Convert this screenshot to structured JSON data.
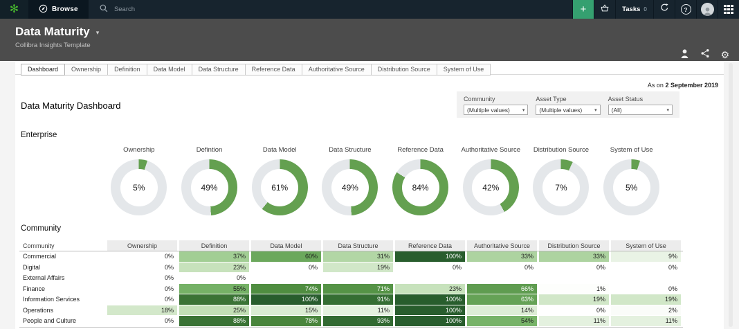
{
  "topnav": {
    "browse_label": "Browse",
    "search_placeholder": "Search",
    "create_label": "+",
    "tasks_label": "Tasks",
    "tasks_count": "0"
  },
  "header": {
    "title": "Data Maturity",
    "subtitle": "Collibra Insights Template"
  },
  "tabs": {
    "active": "Dashboard",
    "items": [
      "Dashboard",
      "Ownership",
      "Definition",
      "Data Model",
      "Data Structure",
      "Reference Data",
      "Authoritative Source",
      "Distribution Source",
      "System of Use"
    ]
  },
  "as_on": {
    "prefix": "As on",
    "date": "2 September 2019"
  },
  "filters": [
    {
      "label": "Community",
      "value": "(Multiple values)"
    },
    {
      "label": "Asset Type",
      "value": "(Multiple values)"
    },
    {
      "label": "Asset Status",
      "value": "(All)"
    }
  ],
  "page_title": "Data Maturity Dashboard",
  "sections": {
    "enterprise": "Enterprise",
    "community": "Community"
  },
  "colors": {
    "navbar_bg": "#17242e",
    "navbar_block": "#0b1720",
    "accent_green": "#35a070",
    "logo_green": "#46b42e",
    "header_bg": "#4c4c4c",
    "donut_green": "#64a050",
    "donut_track": "#e4e7ea",
    "heat_scale": [
      "#ffffff",
      "#c2dfb6",
      "#7fbb70",
      "#4d8b3e",
      "#285d2d"
    ],
    "heat_white_text_min": 63
  },
  "chart_data": [
    {
      "type": "pie",
      "subtype": "donut-kpi-row",
      "section": "Enterprise",
      "unit": "%",
      "legend_position": "none",
      "series": [
        {
          "name": "Ownership",
          "value": 5
        },
        {
          "name": "Defintion",
          "value": 49
        },
        {
          "name": "Data Model",
          "value": 61
        },
        {
          "name": "Data Structure",
          "value": 49
        },
        {
          "name": "Reference Data",
          "value": 84
        },
        {
          "name": "Authoritative Source",
          "value": 42
        },
        {
          "name": "Distribution Source",
          "value": 7
        },
        {
          "name": "System of Use",
          "value": 5
        }
      ]
    },
    {
      "type": "heatmap",
      "section": "Community",
      "unit": "%",
      "scale": {
        "min": 0,
        "max": 100
      },
      "columns": [
        "Community",
        "Ownership",
        "Definition",
        "Data Model",
        "Data Structure",
        "Reference Data",
        "Authoritative Source",
        "Distribution Source",
        "System of Use"
      ],
      "rows": [
        {
          "name": "Commercial",
          "values": [
            0,
            37,
            60,
            31,
            100,
            33,
            33,
            9
          ]
        },
        {
          "name": "Digital",
          "values": [
            0,
            23,
            0,
            19,
            0,
            0,
            0,
            0
          ]
        },
        {
          "name": "External Affairs",
          "values": [
            0,
            0,
            null,
            null,
            null,
            null,
            null,
            null
          ]
        },
        {
          "name": "Finance",
          "values": [
            0,
            55,
            74,
            71,
            23,
            66,
            1,
            0
          ]
        },
        {
          "name": "Information Services",
          "values": [
            0,
            88,
            100,
            91,
            100,
            63,
            19,
            19
          ]
        },
        {
          "name": "Operations",
          "values": [
            18,
            25,
            15,
            11,
            100,
            14,
            0,
            2
          ]
        },
        {
          "name": "People and Culture",
          "values": [
            0,
            88,
            78,
            93,
            100,
            54,
            11,
            11
          ]
        }
      ]
    }
  ]
}
